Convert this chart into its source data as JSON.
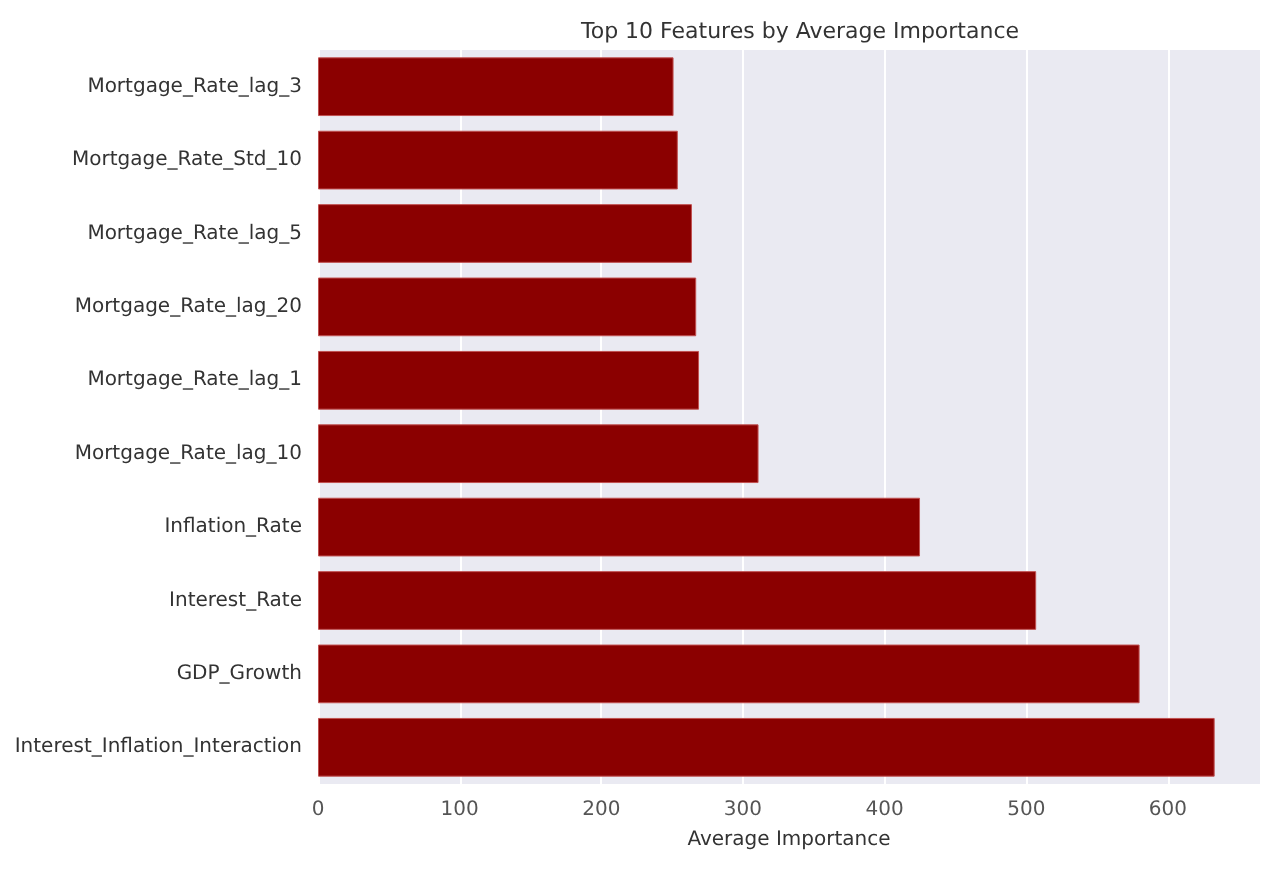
{
  "chart_data": {
    "type": "bar",
    "orientation": "horizontal",
    "title": "Top 10 Features by Average Importance",
    "xlabel": "Average Importance",
    "categories": [
      "Mortgage_Rate_lag_3",
      "Mortgage_Rate_Std_10",
      "Mortgage_Rate_lag_5",
      "Mortgage_Rate_lag_20",
      "Mortgage_Rate_lag_1",
      "Mortgage_Rate_lag_10",
      "Inflation_Rate",
      "Interest_Rate",
      "GDP_Growth",
      "Interest_Inflation_Interaction"
    ],
    "values": [
      251,
      254,
      264,
      267,
      269,
      311,
      425,
      507,
      580,
      633
    ],
    "color": "#8b0000",
    "xlim": [
      0,
      665
    ],
    "xticks": [
      0,
      100,
      200,
      300,
      400,
      500,
      600
    ],
    "grid": true
  }
}
